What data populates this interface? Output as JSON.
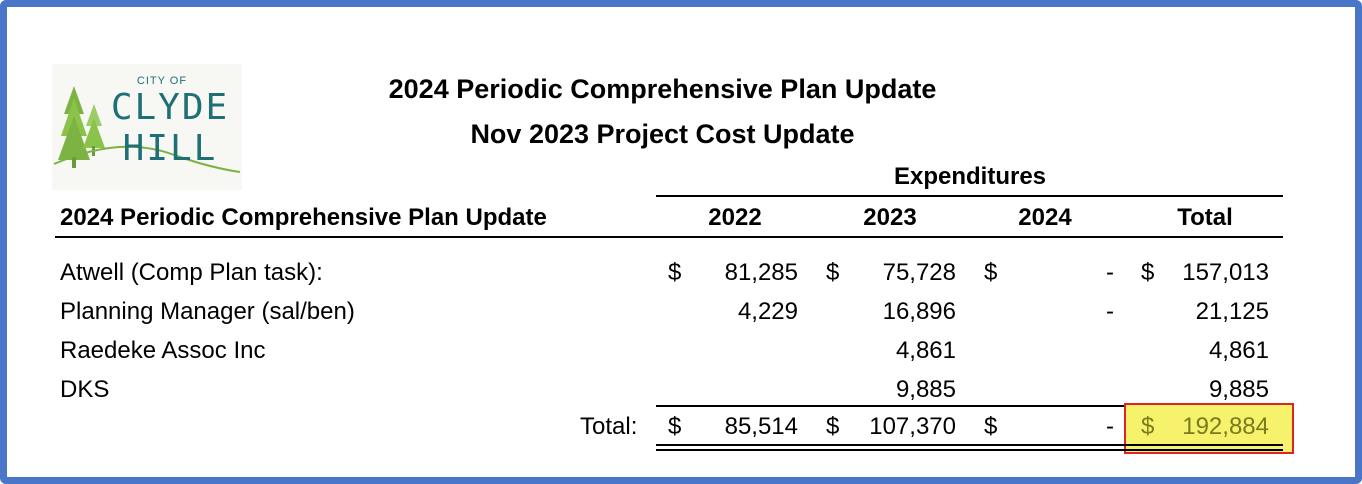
{
  "title": {
    "line1": "2024 Periodic Comprehensive Plan Update",
    "line2": "Nov 2023 Project Cost Update"
  },
  "logo": {
    "city_of": "CITY OF",
    "clyde": "CLYDE",
    "hill": "HILL",
    "brand_color": "#1f6f77",
    "tree_color": "#7cb342"
  },
  "table": {
    "group_header": "Expenditures",
    "row_header": "2024 Periodic Comprehensive Plan Update",
    "columns": [
      "2022",
      "2023",
      "2024",
      "Total"
    ],
    "rows": [
      {
        "label": "Atwell (Comp Plan task):",
        "cells": [
          {
            "sign": "$",
            "value": "81,285"
          },
          {
            "sign": "$",
            "value": "75,728"
          },
          {
            "sign": "$",
            "value": "-"
          },
          {
            "sign": "$",
            "value": "157,013"
          }
        ]
      },
      {
        "label": "Planning Manager (sal/ben)",
        "cells": [
          {
            "sign": "",
            "value": "4,229"
          },
          {
            "sign": "",
            "value": "16,896"
          },
          {
            "sign": "",
            "value": "-"
          },
          {
            "sign": "",
            "value": "21,125"
          }
        ]
      },
      {
        "label": "Raedeke Assoc Inc",
        "cells": [
          {
            "sign": "",
            "value": ""
          },
          {
            "sign": "",
            "value": "4,861"
          },
          {
            "sign": "",
            "value": ""
          },
          {
            "sign": "",
            "value": "4,861"
          }
        ]
      },
      {
        "label": "DKS",
        "cells": [
          {
            "sign": "",
            "value": ""
          },
          {
            "sign": "",
            "value": "9,885"
          },
          {
            "sign": "",
            "value": ""
          },
          {
            "sign": "",
            "value": "9,885"
          }
        ]
      }
    ],
    "total": {
      "label": "Total:",
      "cells": [
        {
          "sign": "$",
          "value": "85,514"
        },
        {
          "sign": "$",
          "value": "107,370"
        },
        {
          "sign": "$",
          "value": "-"
        },
        {
          "sign": "$",
          "value": "192,884"
        }
      ]
    }
  },
  "colors": {
    "frame_border": "#4a76c9",
    "highlight_fill": "#f7f26b",
    "highlight_border": "#e02424"
  }
}
